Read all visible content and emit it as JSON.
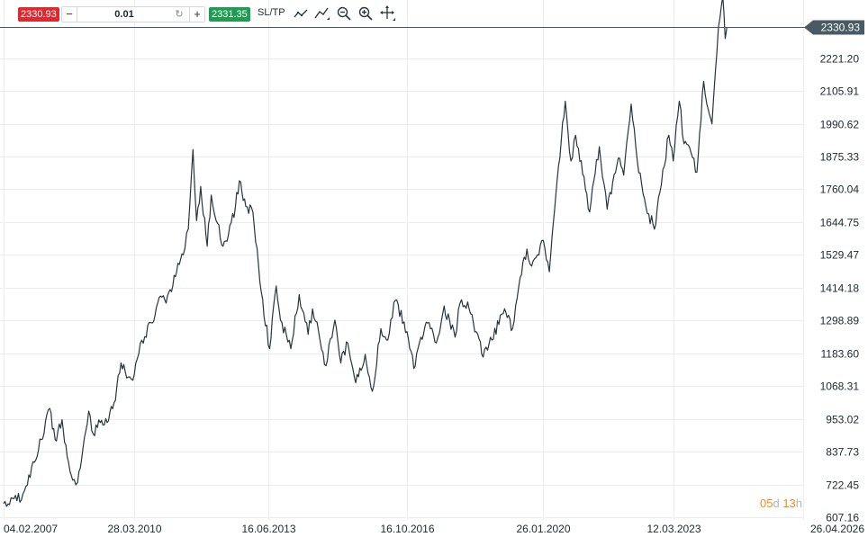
{
  "toolbar": {
    "sell_price": "2330.93",
    "buy_price": "2331.35",
    "quantity": "0.01",
    "minus_label": "−",
    "plus_label": "+",
    "swap_icon": "↻",
    "sltp_label": "SL/TP",
    "icons": [
      "line-chart-icon",
      "trend-line-icon",
      "zoom-out-icon",
      "zoom-in-icon",
      "crosshair-move-icon"
    ]
  },
  "timer": {
    "days": "05",
    "days_unit": "d",
    "hours": "13",
    "hours_unit": "h"
  },
  "colors": {
    "line": "#253640",
    "grid": "#ecedee",
    "last_badge": "#4a5a64",
    "sell": "#e0282e",
    "buy": "#1e9c52",
    "timer": "#f08c1e"
  },
  "chart_data": {
    "type": "line",
    "title": "",
    "xlabel": "",
    "ylabel": "",
    "x_ticks": [
      "04.02.2007",
      "28.03.2010",
      "16.06.2013",
      "16.10.2016",
      "26.01.2020",
      "12.03.2023",
      "26.04.2026"
    ],
    "x_range": [
      "2007-02-04",
      "2026-04-26"
    ],
    "y_ticks": [
      "607.16",
      "722.45",
      "837.73",
      "953.02",
      "1068.31",
      "1183.60",
      "1298.89",
      "1414.18",
      "1529.47",
      "1644.75",
      "1760.04",
      "1875.33",
      "1990.62",
      "2105.91",
      "2221.20",
      "2330.93"
    ],
    "ylim": [
      607.16,
      2336.49
    ],
    "last_price": "2330.93",
    "last_price_value": 2330.93,
    "grid": true,
    "series": [
      {
        "points": [
          [
            "2007-02-04",
            655
          ],
          [
            "2007-06-01",
            665
          ],
          [
            "2007-09-01",
            720
          ],
          [
            "2007-11-01",
            800
          ],
          [
            "2008-01-01",
            880
          ],
          [
            "2008-03-15",
            990
          ],
          [
            "2008-05-01",
            880
          ],
          [
            "2008-07-01",
            950
          ],
          [
            "2008-08-15",
            820
          ],
          [
            "2008-10-15",
            740
          ],
          [
            "2008-11-15",
            730
          ],
          [
            "2009-01-01",
            850
          ],
          [
            "2009-02-20",
            980
          ],
          [
            "2009-04-01",
            900
          ],
          [
            "2009-06-01",
            940
          ],
          [
            "2009-08-01",
            940
          ],
          [
            "2009-10-01",
            1010
          ],
          [
            "2009-12-01",
            1150
          ],
          [
            "2010-02-01",
            1100
          ],
          [
            "2010-03-28",
            1110
          ],
          [
            "2010-06-01",
            1230
          ],
          [
            "2010-09-01",
            1290
          ],
          [
            "2010-11-01",
            1380
          ],
          [
            "2011-01-01",
            1360
          ],
          [
            "2011-03-01",
            1420
          ],
          [
            "2011-04-15",
            1500
          ],
          [
            "2011-06-01",
            1530
          ],
          [
            "2011-07-15",
            1620
          ],
          [
            "2011-08-25",
            1900
          ],
          [
            "2011-09-25",
            1650
          ],
          [
            "2011-11-01",
            1770
          ],
          [
            "2011-12-28",
            1560
          ],
          [
            "2012-02-01",
            1740
          ],
          [
            "2012-03-15",
            1650
          ],
          [
            "2012-05-15",
            1560
          ],
          [
            "2012-07-01",
            1600
          ],
          [
            "2012-09-01",
            1700
          ],
          [
            "2012-10-05",
            1790
          ],
          [
            "2012-12-01",
            1700
          ],
          [
            "2013-02-01",
            1680
          ],
          [
            "2013-04-15",
            1400
          ],
          [
            "2013-06-28",
            1200
          ],
          [
            "2013-08-25",
            1420
          ],
          [
            "2013-10-01",
            1300
          ],
          [
            "2013-12-31",
            1200
          ],
          [
            "2014-03-15",
            1390
          ],
          [
            "2014-06-01",
            1250
          ],
          [
            "2014-07-10",
            1340
          ],
          [
            "2014-11-05",
            1140
          ],
          [
            "2015-01-22",
            1300
          ],
          [
            "2015-03-15",
            1150
          ],
          [
            "2015-05-15",
            1220
          ],
          [
            "2015-07-24",
            1080
          ],
          [
            "2015-10-15",
            1180
          ],
          [
            "2015-12-17",
            1050
          ],
          [
            "2016-03-01",
            1270
          ],
          [
            "2016-05-01",
            1230
          ],
          [
            "2016-07-06",
            1370
          ],
          [
            "2016-10-16",
            1260
          ],
          [
            "2016-12-15",
            1130
          ],
          [
            "2017-02-15",
            1240
          ],
          [
            "2017-04-15",
            1290
          ],
          [
            "2017-07-01",
            1220
          ],
          [
            "2017-09-08",
            1350
          ],
          [
            "2017-12-12",
            1240
          ],
          [
            "2018-01-25",
            1360
          ],
          [
            "2018-04-15",
            1340
          ],
          [
            "2018-08-16",
            1170
          ],
          [
            "2018-11-01",
            1230
          ],
          [
            "2019-02-20",
            1340
          ],
          [
            "2019-05-01",
            1270
          ],
          [
            "2019-06-25",
            1420
          ],
          [
            "2019-09-04",
            1550
          ],
          [
            "2019-10-15",
            1490
          ],
          [
            "2020-01-26",
            1580
          ],
          [
            "2020-03-19",
            1470
          ],
          [
            "2020-05-15",
            1740
          ],
          [
            "2020-08-06",
            2070
          ],
          [
            "2020-09-25",
            1860
          ],
          [
            "2020-11-05",
            1950
          ],
          [
            "2021-03-08",
            1680
          ],
          [
            "2021-06-01",
            1910
          ],
          [
            "2021-08-09",
            1690
          ],
          [
            "2021-11-15",
            1870
          ],
          [
            "2022-01-01",
            1810
          ],
          [
            "2022-03-08",
            2060
          ],
          [
            "2022-05-01",
            1860
          ],
          [
            "2022-07-15",
            1700
          ],
          [
            "2022-09-28",
            1620
          ],
          [
            "2022-11-15",
            1750
          ],
          [
            "2023-02-01",
            1950
          ],
          [
            "2023-03-12",
            1860
          ],
          [
            "2023-05-04",
            2070
          ],
          [
            "2023-06-15",
            1920
          ],
          [
            "2023-08-15",
            1890
          ],
          [
            "2023-10-06",
            1820
          ],
          [
            "2023-12-04",
            2140
          ],
          [
            "2024-01-01",
            2060
          ],
          [
            "2024-02-15",
            1990
          ],
          [
            "2024-03-15",
            2170
          ],
          [
            "2024-04-12",
            2330
          ],
          [
            "2024-05-20",
            2440
          ],
          [
            "2024-06-10",
            2290
          ],
          [
            "2024-06-25",
            2330.93
          ]
        ]
      }
    ]
  }
}
